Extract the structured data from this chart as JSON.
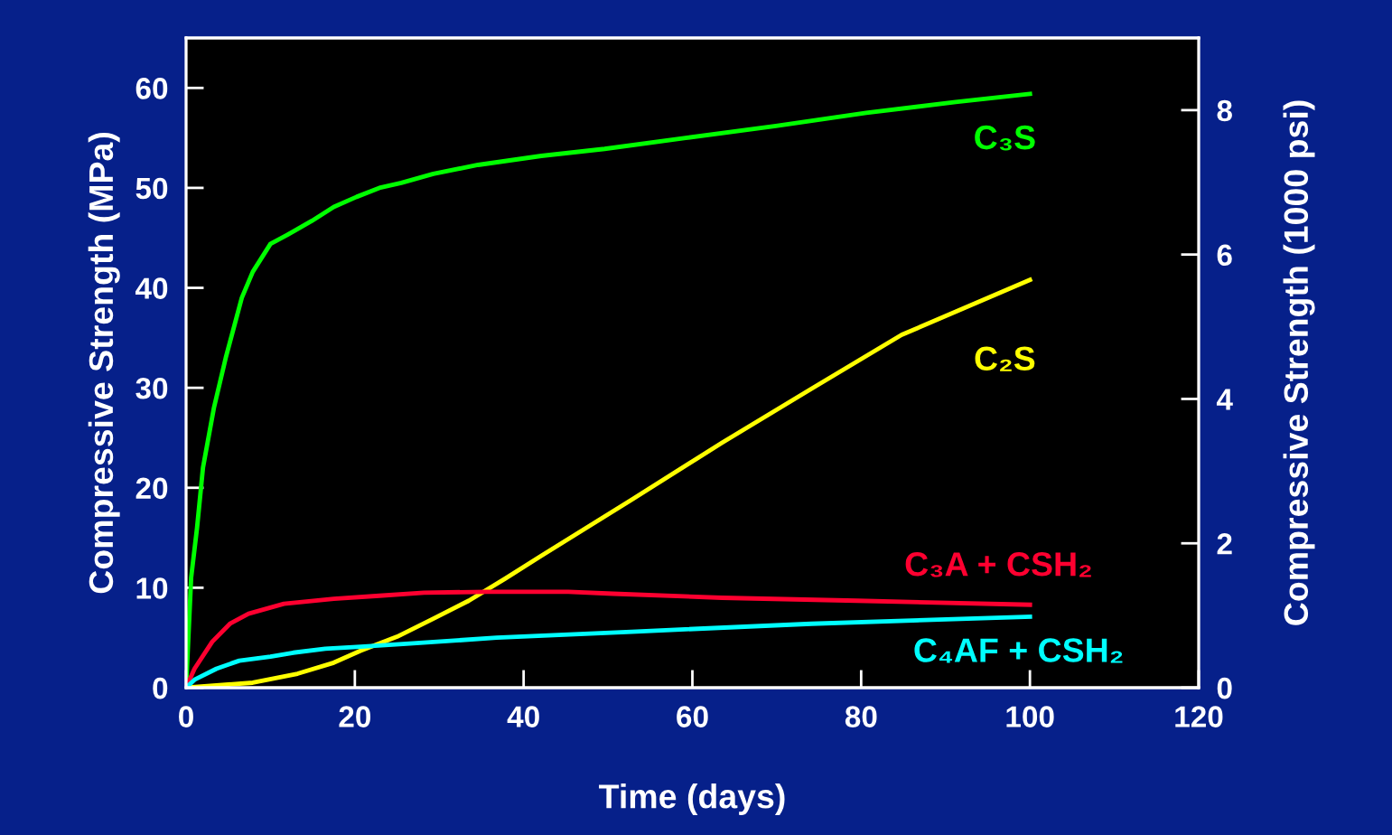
{
  "chart_data": {
    "type": "line",
    "xlabel": "Time (days)",
    "ylabel": "Compressive Strength (MPa)",
    "y2label": "Compressive Strength (1000 psi)",
    "xlim": [
      0,
      120
    ],
    "xticks": [
      0,
      20,
      40,
      60,
      80,
      100,
      120
    ],
    "ylim": [
      0,
      65
    ],
    "yticks": [
      0,
      10,
      20,
      30,
      40,
      50,
      60
    ],
    "y2lim": [
      0,
      9
    ],
    "y2ticks": [
      0,
      2,
      4,
      6,
      8
    ],
    "grid": false,
    "legend": false,
    "marker": "none",
    "line_style": "solid",
    "series": [
      {
        "name": "C₃S",
        "color": "#00ff00",
        "x": [
          0,
          0.6,
          1.3,
          2,
          3.3,
          4.7,
          6.6,
          7.9,
          10,
          12,
          14.9,
          17.5,
          20.2,
          22.9,
          25.5,
          29.3,
          34.6,
          42.1,
          49.6,
          59.2,
          69.9,
          80.6,
          91.2,
          100
        ],
        "values": [
          0,
          11,
          16,
          22,
          28,
          33,
          39,
          41.6,
          44.4,
          45.3,
          46.7,
          48.1,
          49.1,
          50,
          50.5,
          51.4,
          52.3,
          53.2,
          53.9,
          55,
          56.2,
          57.5,
          58.6,
          59.4
        ]
      },
      {
        "name": "C₂S",
        "color": "#ffff00",
        "x": [
          0,
          7.9,
          13.2,
          17.5,
          20.7,
          25,
          29.3,
          33.5,
          37.8,
          42.1,
          52.8,
          63.5,
          74.1,
          84.8,
          100
        ],
        "values": [
          0,
          0.5,
          1.4,
          2.5,
          3.7,
          5.1,
          6.9,
          8.7,
          10.9,
          13.2,
          18.8,
          24.5,
          29.9,
          35.3,
          40.8
        ]
      },
      {
        "name": "C₃A + CSH₂",
        "color": "#ff0030",
        "x": [
          0,
          1,
          3.1,
          5.2,
          7.4,
          11.6,
          17.5,
          22.9,
          28.2,
          35.7,
          45.3,
          50.6,
          63.5,
          79.5,
          100
        ],
        "values": [
          0,
          1.9,
          4.6,
          6.4,
          7.4,
          8.4,
          8.9,
          9.2,
          9.5,
          9.6,
          9.6,
          9.4,
          9,
          8.7,
          8.3
        ]
      },
      {
        "name": "C₄AF + CSH₂",
        "color": "#00ffff",
        "x": [
          0,
          1,
          3.6,
          6.3,
          10,
          12.7,
          16.5,
          20.7,
          26.1,
          36.8,
          52.8,
          74.1,
          100
        ],
        "values": [
          0,
          0.8,
          1.9,
          2.7,
          3.1,
          3.5,
          3.9,
          4.1,
          4.4,
          5,
          5.6,
          6.4,
          7.1
        ]
      }
    ]
  }
}
